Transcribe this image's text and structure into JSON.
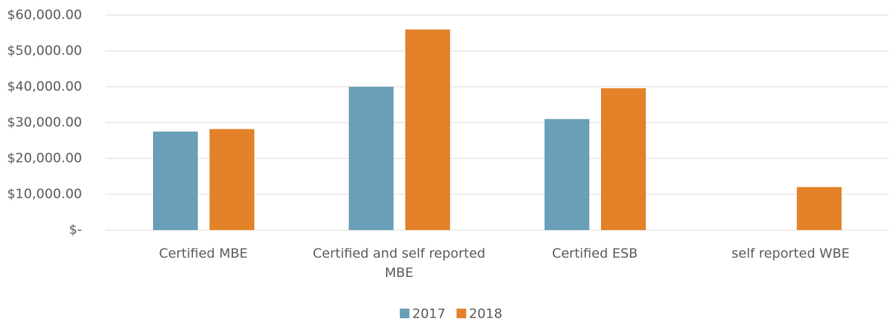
{
  "chart_data": {
    "type": "bar",
    "categories": [
      "Certified MBE",
      "Certified and self reported MBE",
      "Certified ESB",
      "self reported WBE"
    ],
    "series": [
      {
        "name": "2017",
        "color": "#6a9fb8",
        "values": [
          27500,
          40000,
          31000,
          0
        ]
      },
      {
        "name": "2018",
        "color": "#e38229",
        "values": [
          28200,
          56000,
          39600,
          12000
        ]
      }
    ],
    "ylim": [
      0,
      60000
    ],
    "yticks": [
      {
        "value": 0,
        "label": "$-"
      },
      {
        "value": 10000,
        "label": "$10,000.00"
      },
      {
        "value": 20000,
        "label": "$20,000.00"
      },
      {
        "value": 30000,
        "label": "$30,000.00"
      },
      {
        "value": 40000,
        "label": "$40,000.00"
      },
      {
        "value": 50000,
        "label": "$50,000.00"
      },
      {
        "value": 60000,
        "label": "$60,000.00"
      }
    ],
    "grid": true,
    "legend": "bottom"
  }
}
